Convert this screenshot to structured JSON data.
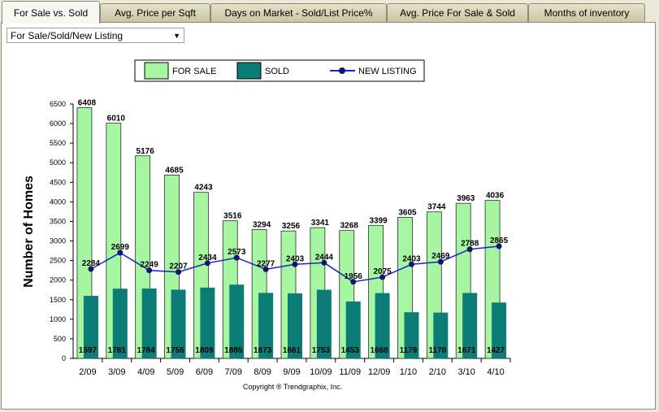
{
  "tabs": [
    {
      "label": "For Sale vs. Sold",
      "active": true
    },
    {
      "label": "Avg. Price per Sqft",
      "active": false
    },
    {
      "label": "Days on Market - Sold/List Price%",
      "active": false
    },
    {
      "label": "Avg. Price For Sale & Sold",
      "active": false
    },
    {
      "label": "Months of inventory",
      "active": false
    }
  ],
  "dropdown": {
    "selected": "For Sale/Sold/New Listing"
  },
  "colors": {
    "for_sale": "#a6f5a0",
    "sold": "#0b7d76",
    "new_listing": "#1426c8",
    "marker": "#14146e"
  },
  "chart_data": {
    "type": "bar",
    "ylabel": "Number of Homes",
    "ylim": [
      0,
      6500
    ],
    "yticks": [
      0,
      500,
      1000,
      1500,
      2000,
      2500,
      3000,
      3500,
      4000,
      4500,
      5000,
      5500,
      6000,
      6500
    ],
    "categories": [
      "2/09",
      "3/09",
      "4/09",
      "5/09",
      "6/09",
      "7/09",
      "8/09",
      "9/09",
      "10/09",
      "11/09",
      "12/09",
      "1/10",
      "2/10",
      "3/10",
      "4/10"
    ],
    "legend": {
      "position": "top",
      "entries": [
        "FOR SALE",
        "SOLD",
        "NEW LISTING"
      ]
    },
    "series": [
      {
        "name": "FOR SALE",
        "type": "bar",
        "values": [
          6408,
          6010,
          5176,
          4685,
          4243,
          3516,
          3294,
          3256,
          3341,
          3268,
          3399,
          3605,
          3744,
          3963,
          4036
        ]
      },
      {
        "name": "SOLD",
        "type": "bar",
        "values": [
          1597,
          1781,
          1784,
          1756,
          1809,
          1885,
          1673,
          1661,
          1753,
          1453,
          1668,
          1179,
          1170,
          1671,
          1427
        ]
      },
      {
        "name": "NEW LISTING",
        "type": "line",
        "values": [
          2284,
          2699,
          2249,
          2207,
          2434,
          2573,
          2277,
          2403,
          2444,
          1956,
          2075,
          2403,
          2469,
          2788,
          2865
        ]
      }
    ],
    "footnote": "Copyright ® Trendgraphix, Inc."
  }
}
